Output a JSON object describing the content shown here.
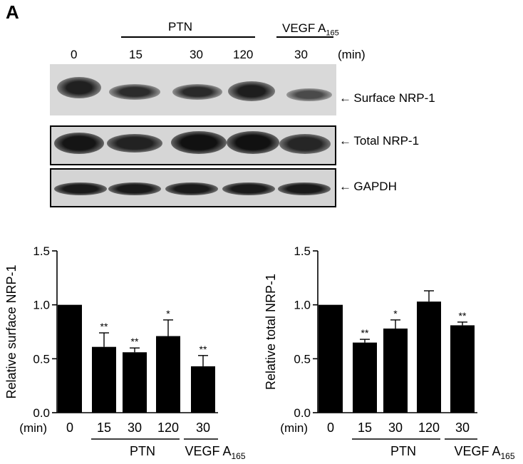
{
  "panel_label": "A",
  "blot": {
    "header_ptn": "PTN",
    "header_vegf": "VEGF A",
    "header_vegf_sub": "165",
    "time_labels": [
      "0",
      "15",
      "30",
      "120",
      "30"
    ],
    "time_unit": "(min)",
    "rows": [
      {
        "label": "Surface  NRP-1",
        "intensity": [
          0.95,
          0.7,
          0.75,
          0.85,
          0.5
        ]
      },
      {
        "label": "Total NRP-1",
        "intensity": [
          0.9,
          0.65,
          0.85,
          0.9,
          0.75
        ]
      },
      {
        "label": "GAPDH",
        "intensity": [
          0.85,
          0.85,
          0.85,
          0.85,
          0.85
        ]
      }
    ]
  },
  "chart_data": [
    {
      "type": "bar",
      "ylabel": "Relative surface NRP-1",
      "ylim": [
        0,
        1.5
      ],
      "yticks": [
        "0.0",
        "0.5",
        "1.0",
        "1.5"
      ],
      "x_unit": "(min)",
      "categories": [
        "0",
        "15",
        "30",
        "120",
        "30"
      ],
      "values": [
        1.0,
        0.61,
        0.56,
        0.71,
        0.43
      ],
      "errors": [
        0,
        0.13,
        0.04,
        0.15,
        0.1
      ],
      "significance": [
        "",
        "**",
        "**",
        "*",
        "**"
      ],
      "group_ptn": "PTN",
      "group_vegf": "VEGF A",
      "group_vegf_sub": "165",
      "bar_color": "#000000"
    },
    {
      "type": "bar",
      "ylabel": "Relative total NRP-1",
      "ylim": [
        0,
        1.5
      ],
      "yticks": [
        "0.0",
        "0.5",
        "1.0",
        "1.5"
      ],
      "x_unit": "(min)",
      "categories": [
        "0",
        "15",
        "30",
        "120",
        "30"
      ],
      "values": [
        1.0,
        0.65,
        0.78,
        1.03,
        0.81
      ],
      "errors": [
        0,
        0.03,
        0.08,
        0.1,
        0.03
      ],
      "significance": [
        "",
        "**",
        "*",
        "",
        "**"
      ],
      "group_ptn": "PTN",
      "group_vegf": "VEGF A",
      "group_vegf_sub": "165",
      "bar_color": "#000000"
    }
  ]
}
